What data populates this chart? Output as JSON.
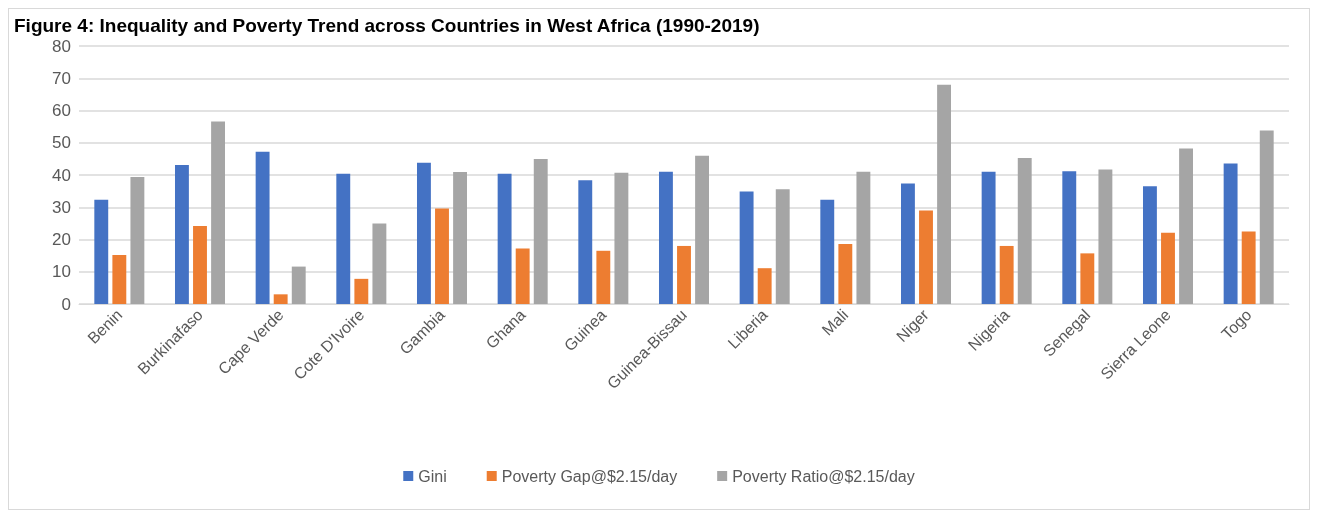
{
  "chart_data": {
    "type": "bar",
    "title": "Figure 4: Inequality and Poverty Trend across Countries in West Africa (1990-2019)",
    "categories": [
      "Benin",
      "Burkinafaso",
      "Cape Verde",
      "Cote D'Ivoire",
      "Gambia",
      "Ghana",
      "Guinea",
      "Guinea-Bissau",
      "Liberia",
      "Mali",
      "Niger",
      "Nigeria",
      "Senegal",
      "Sierra Leone",
      "Togo"
    ],
    "series": [
      {
        "name": "Gini",
        "color": "#4472c4",
        "values": [
          32.3,
          43.1,
          47.2,
          40.4,
          43.8,
          40.4,
          38.4,
          41.0,
          34.9,
          32.3,
          37.4,
          41.0,
          41.2,
          36.5,
          43.6
        ]
      },
      {
        "name": "Poverty Gap@$2.15/day",
        "color": "#ed7d31",
        "values": [
          15.2,
          24.2,
          3.0,
          7.8,
          29.6,
          17.2,
          16.5,
          18.0,
          11.1,
          18.6,
          29.0,
          18.0,
          15.7,
          22.1,
          22.5
        ]
      },
      {
        "name": "Poverty Ratio@$2.15/day",
        "color": "#a5a5a5",
        "values": [
          39.4,
          56.6,
          11.6,
          25.0,
          40.9,
          45.0,
          40.7,
          46.0,
          35.6,
          41.0,
          68.0,
          45.3,
          41.7,
          48.2,
          53.8
        ]
      }
    ],
    "ylim": [
      0,
      80
    ],
    "yticks": [
      0,
      10,
      20,
      30,
      40,
      50,
      60,
      70,
      80
    ],
    "grid": "y",
    "legend": "bottom"
  }
}
